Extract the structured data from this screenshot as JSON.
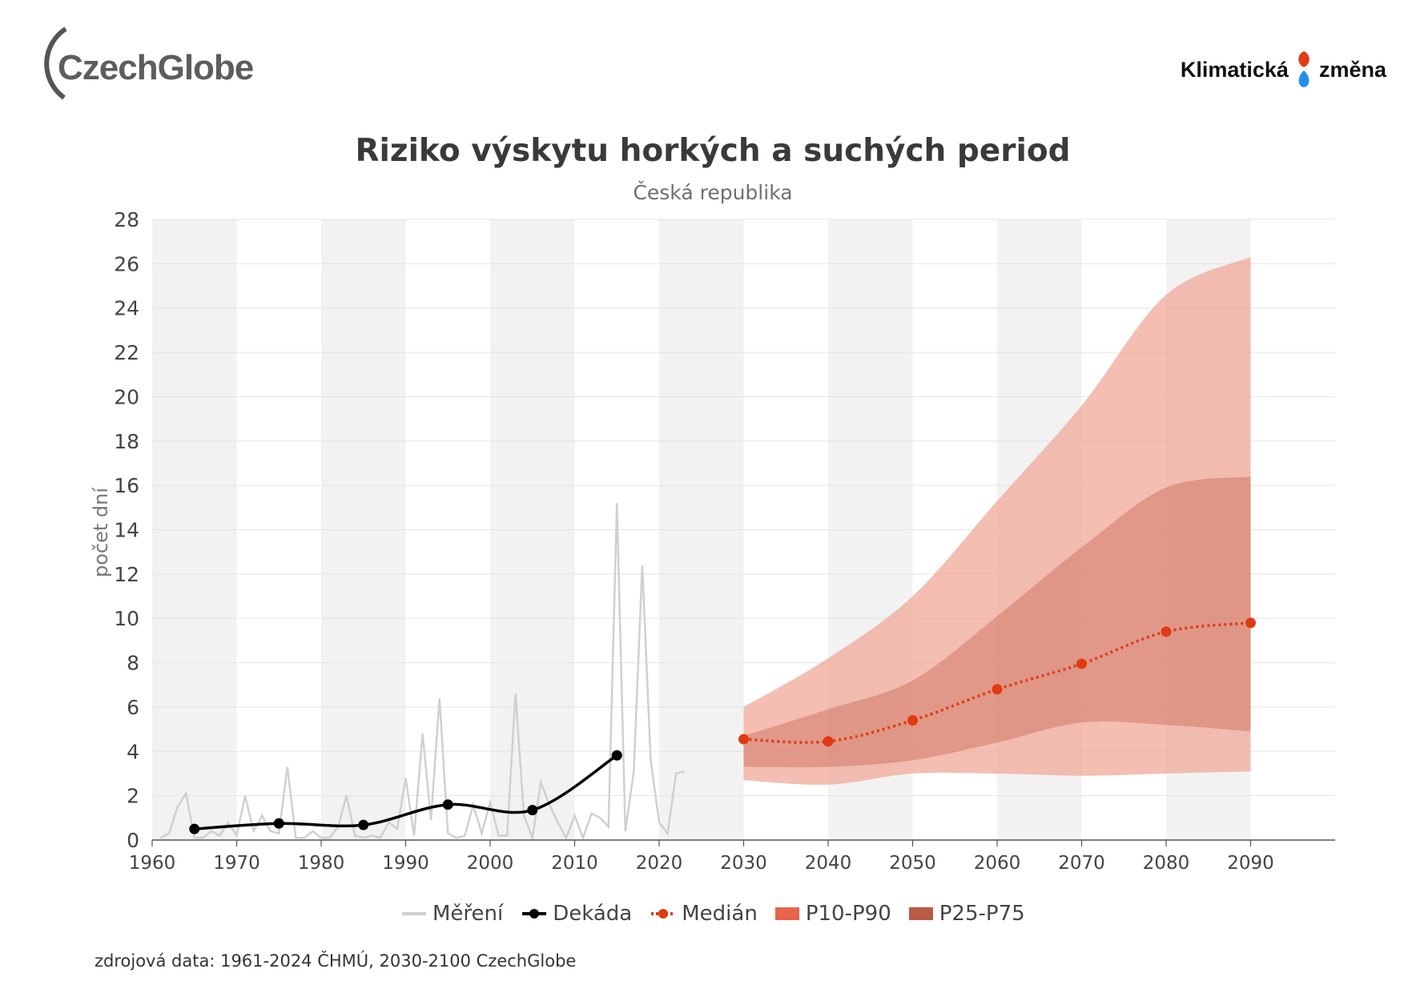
{
  "header": {
    "logo_left_text": "CzechGlobe",
    "logo_right_left": "Klimatická",
    "logo_right_right": "změna"
  },
  "colors": {
    "measurement": "#d0d0d0",
    "decade": "#000000",
    "median": "#e03a12",
    "p10_p90": "#f0a898",
    "p25_p75": "#c96b55",
    "band_stripe": "#f2f2f2",
    "legend_p10_p90": "#e8644a",
    "legend_p25_p75": "#b85a45"
  },
  "footer": {
    "source": "zdrojová data: 1961-2024 ČHMÚ, 2030-2100 CzechGlobe"
  },
  "chart_data": {
    "type": "line",
    "title": "Riziko výskytu horkých a suchých period",
    "subtitle": "Česká republika",
    "xlabel": "",
    "ylabel": "počet dní",
    "xlim": [
      1960,
      2100
    ],
    "ylim": [
      0,
      28
    ],
    "x_ticks": [
      1960,
      1970,
      1980,
      1990,
      2000,
      2010,
      2020,
      2030,
      2040,
      2050,
      2060,
      2070,
      2080,
      2090
    ],
    "y_ticks": [
      0,
      2,
      4,
      6,
      8,
      10,
      12,
      14,
      16,
      18,
      20,
      22,
      24,
      26,
      28
    ],
    "grid": true,
    "legend_position": "bottom",
    "legend": [
      "Měření",
      "Dekáda",
      "Medián",
      "P10-P90",
      "P25-P75"
    ],
    "series": [
      {
        "name": "Měření",
        "x": [
          1961,
          1962,
          1963,
          1964,
          1965,
          1966,
          1967,
          1968,
          1969,
          1970,
          1971,
          1972,
          1973,
          1974,
          1975,
          1976,
          1977,
          1978,
          1979,
          1980,
          1981,
          1982,
          1983,
          1984,
          1985,
          1986,
          1987,
          1988,
          1989,
          1990,
          1991,
          1992,
          1993,
          1994,
          1995,
          1996,
          1997,
          1998,
          1999,
          2000,
          2001,
          2002,
          2003,
          2004,
          2005,
          2006,
          2007,
          2008,
          2009,
          2010,
          2011,
          2012,
          2013,
          2014,
          2015,
          2016,
          2017,
          2018,
          2019,
          2020,
          2021,
          2022,
          2023
        ],
        "values": [
          0.1,
          0.3,
          1.5,
          2.1,
          0.1,
          0.1,
          0.4,
          0.2,
          0.8,
          0.2,
          2.0,
          0.4,
          1.1,
          0.4,
          0.3,
          3.3,
          0.1,
          0.1,
          0.4,
          0.1,
          0.1,
          0.6,
          2.0,
          0.2,
          0.1,
          0.2,
          0.1,
          0.8,
          0.5,
          2.8,
          0.2,
          4.8,
          0.9,
          6.4,
          0.3,
          0.1,
          0.2,
          1.6,
          0.3,
          1.7,
          0.2,
          0.2,
          6.6,
          1.1,
          0.1,
          2.6,
          1.6,
          0.8,
          0.1,
          1.1,
          0.1,
          1.2,
          1.0,
          0.6,
          15.2,
          0.4,
          3.1,
          12.4,
          3.6,
          0.8,
          0.3,
          3.0,
          3.1
        ]
      },
      {
        "name": "Dekáda",
        "x": [
          1965,
          1975,
          1985,
          1995,
          2005,
          2015
        ],
        "values": [
          0.5,
          0.75,
          0.68,
          1.6,
          1.35,
          3.82
        ]
      },
      {
        "name": "Medián",
        "x": [
          2030,
          2040,
          2050,
          2060,
          2070,
          2080,
          2090
        ],
        "values": [
          4.55,
          4.45,
          5.4,
          6.8,
          7.95,
          9.4,
          9.8
        ]
      },
      {
        "name": "P10-P90",
        "x": [
          2030,
          2040,
          2050,
          2060,
          2070,
          2080,
          2090
        ],
        "low": [
          2.7,
          2.5,
          3.0,
          3.0,
          2.9,
          3.0,
          3.1
        ],
        "high": [
          6.0,
          8.2,
          11.0,
          15.3,
          19.6,
          24.6,
          26.3
        ]
      },
      {
        "name": "P25-P75",
        "x": [
          2030,
          2040,
          2050,
          2060,
          2070,
          2080,
          2090
        ],
        "low": [
          3.3,
          3.3,
          3.6,
          4.4,
          5.3,
          5.2,
          4.9
        ],
        "high": [
          4.7,
          5.9,
          7.2,
          10.1,
          13.2,
          15.9,
          16.4
        ]
      }
    ]
  }
}
